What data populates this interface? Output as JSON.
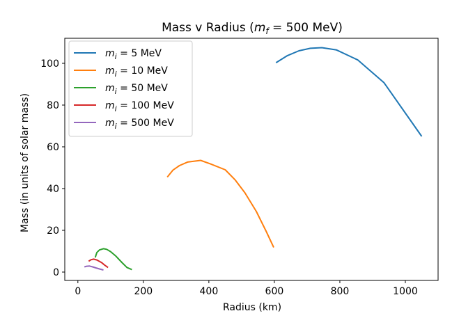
{
  "chart_data": {
    "type": "line",
    "title_prefix": "Mass v Radius (",
    "title_var": "m",
    "title_sub": "f",
    "title_suffix": " = 500 MeV)",
    "xlabel": "Radius (km)",
    "ylabel": "Mass (in units of solar mass)",
    "xlim": [
      -40,
      1100
    ],
    "ylim": [
      -4,
      112
    ],
    "xticks": [
      0,
      200,
      400,
      600,
      800,
      1000
    ],
    "yticks": [
      0,
      20,
      40,
      60,
      80,
      100
    ],
    "grid": false,
    "legend_position": "upper-left",
    "series": [
      {
        "name_var": "m",
        "name_sub": "i",
        "name_suffix": " = 5 MeV",
        "color": "#1f77b4",
        "x": [
          605,
          640,
          675,
          710,
          745,
          790,
          855,
          935,
          1050
        ],
        "y": [
          100.3,
          103.7,
          106.0,
          107.2,
          107.5,
          106.4,
          101.6,
          90.7,
          65.0
        ]
      },
      {
        "name_var": "m",
        "name_sub": "i",
        "name_suffix": " = 10 MeV",
        "color": "#ff7f0e",
        "x": [
          273,
          290,
          310,
          335,
          375,
          405,
          450,
          480,
          510,
          545,
          575,
          598
        ],
        "y": [
          45.5,
          48.8,
          51.0,
          52.7,
          53.5,
          51.8,
          49.0,
          44.2,
          38.0,
          29.0,
          19.5,
          11.8
        ]
      },
      {
        "name_var": "m",
        "name_sub": "i",
        "name_suffix": " = 50 MeV",
        "color": "#2ca02c",
        "x": [
          53,
          58,
          66,
          78,
          88,
          100,
          115,
          135,
          150,
          165
        ],
        "y": [
          7.0,
          9.4,
          10.6,
          11.2,
          10.9,
          9.8,
          7.8,
          4.5,
          2.2,
          1.2
        ]
      },
      {
        "name_var": "m",
        "name_sub": "i",
        "name_suffix": " = 100 MeV",
        "color": "#d62728",
        "x": [
          33,
          40,
          48,
          58,
          72,
          82,
          92
        ],
        "y": [
          5.2,
          5.9,
          6.2,
          5.8,
          4.6,
          3.3,
          2.2
        ]
      },
      {
        "name_var": "m",
        "name_sub": "i",
        "name_suffix": " = 500 MeV",
        "color": "#9467bd",
        "x": [
          20,
          27,
          35,
          45,
          55,
          66,
          78
        ],
        "y": [
          2.5,
          2.8,
          2.9,
          2.5,
          2.0,
          1.5,
          1.0
        ]
      }
    ]
  }
}
